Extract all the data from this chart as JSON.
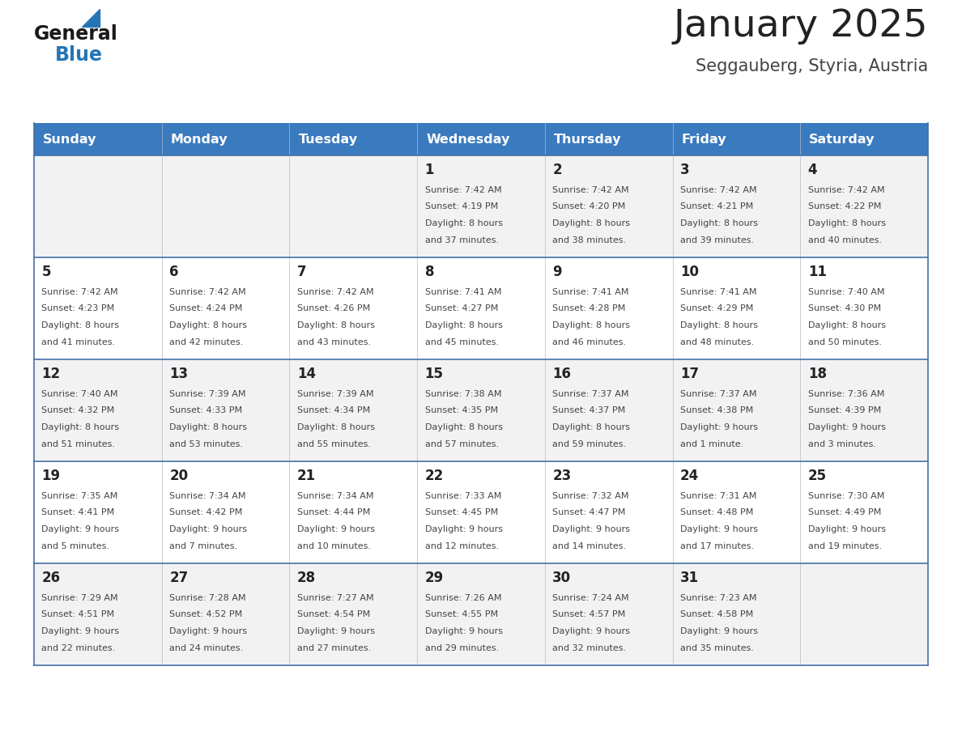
{
  "title": "January 2025",
  "subtitle": "Seggauberg, Styria, Austria",
  "days_of_week": [
    "Sunday",
    "Monday",
    "Tuesday",
    "Wednesday",
    "Thursday",
    "Friday",
    "Saturday"
  ],
  "header_bg": "#3a7abf",
  "header_text": "#ffffff",
  "row_bg_even": "#f2f2f2",
  "row_bg_odd": "#ffffff",
  "cell_border_color": "#4472a8",
  "title_color": "#222222",
  "subtitle_color": "#444444",
  "day_number_color": "#222222",
  "cell_text_color": "#444444",
  "logo_general_color": "#1a1a1a",
  "logo_blue_color": "#2575b5",
  "weeks": [
    {
      "days": [
        {
          "day": null,
          "info": null
        },
        {
          "day": null,
          "info": null
        },
        {
          "day": null,
          "info": null
        },
        {
          "day": 1,
          "info": {
            "sunrise": "7:42 AM",
            "sunset": "4:19 PM",
            "daylight": "8 hours and 37 minutes"
          }
        },
        {
          "day": 2,
          "info": {
            "sunrise": "7:42 AM",
            "sunset": "4:20 PM",
            "daylight": "8 hours and 38 minutes"
          }
        },
        {
          "day": 3,
          "info": {
            "sunrise": "7:42 AM",
            "sunset": "4:21 PM",
            "daylight": "8 hours and 39 minutes"
          }
        },
        {
          "day": 4,
          "info": {
            "sunrise": "7:42 AM",
            "sunset": "4:22 PM",
            "daylight": "8 hours and 40 minutes"
          }
        }
      ]
    },
    {
      "days": [
        {
          "day": 5,
          "info": {
            "sunrise": "7:42 AM",
            "sunset": "4:23 PM",
            "daylight": "8 hours and 41 minutes"
          }
        },
        {
          "day": 6,
          "info": {
            "sunrise": "7:42 AM",
            "sunset": "4:24 PM",
            "daylight": "8 hours and 42 minutes"
          }
        },
        {
          "day": 7,
          "info": {
            "sunrise": "7:42 AM",
            "sunset": "4:26 PM",
            "daylight": "8 hours and 43 minutes"
          }
        },
        {
          "day": 8,
          "info": {
            "sunrise": "7:41 AM",
            "sunset": "4:27 PM",
            "daylight": "8 hours and 45 minutes"
          }
        },
        {
          "day": 9,
          "info": {
            "sunrise": "7:41 AM",
            "sunset": "4:28 PM",
            "daylight": "8 hours and 46 minutes"
          }
        },
        {
          "day": 10,
          "info": {
            "sunrise": "7:41 AM",
            "sunset": "4:29 PM",
            "daylight": "8 hours and 48 minutes"
          }
        },
        {
          "day": 11,
          "info": {
            "sunrise": "7:40 AM",
            "sunset": "4:30 PM",
            "daylight": "8 hours and 50 minutes"
          }
        }
      ]
    },
    {
      "days": [
        {
          "day": 12,
          "info": {
            "sunrise": "7:40 AM",
            "sunset": "4:32 PM",
            "daylight": "8 hours and 51 minutes"
          }
        },
        {
          "day": 13,
          "info": {
            "sunrise": "7:39 AM",
            "sunset": "4:33 PM",
            "daylight": "8 hours and 53 minutes"
          }
        },
        {
          "day": 14,
          "info": {
            "sunrise": "7:39 AM",
            "sunset": "4:34 PM",
            "daylight": "8 hours and 55 minutes"
          }
        },
        {
          "day": 15,
          "info": {
            "sunrise": "7:38 AM",
            "sunset": "4:35 PM",
            "daylight": "8 hours and 57 minutes"
          }
        },
        {
          "day": 16,
          "info": {
            "sunrise": "7:37 AM",
            "sunset": "4:37 PM",
            "daylight": "8 hours and 59 minutes"
          }
        },
        {
          "day": 17,
          "info": {
            "sunrise": "7:37 AM",
            "sunset": "4:38 PM",
            "daylight": "9 hours and 1 minute"
          }
        },
        {
          "day": 18,
          "info": {
            "sunrise": "7:36 AM",
            "sunset": "4:39 PM",
            "daylight": "9 hours and 3 minutes"
          }
        }
      ]
    },
    {
      "days": [
        {
          "day": 19,
          "info": {
            "sunrise": "7:35 AM",
            "sunset": "4:41 PM",
            "daylight": "9 hours and 5 minutes"
          }
        },
        {
          "day": 20,
          "info": {
            "sunrise": "7:34 AM",
            "sunset": "4:42 PM",
            "daylight": "9 hours and 7 minutes"
          }
        },
        {
          "day": 21,
          "info": {
            "sunrise": "7:34 AM",
            "sunset": "4:44 PM",
            "daylight": "9 hours and 10 minutes"
          }
        },
        {
          "day": 22,
          "info": {
            "sunrise": "7:33 AM",
            "sunset": "4:45 PM",
            "daylight": "9 hours and 12 minutes"
          }
        },
        {
          "day": 23,
          "info": {
            "sunrise": "7:32 AM",
            "sunset": "4:47 PM",
            "daylight": "9 hours and 14 minutes"
          }
        },
        {
          "day": 24,
          "info": {
            "sunrise": "7:31 AM",
            "sunset": "4:48 PM",
            "daylight": "9 hours and 17 minutes"
          }
        },
        {
          "day": 25,
          "info": {
            "sunrise": "7:30 AM",
            "sunset": "4:49 PM",
            "daylight": "9 hours and 19 minutes"
          }
        }
      ]
    },
    {
      "days": [
        {
          "day": 26,
          "info": {
            "sunrise": "7:29 AM",
            "sunset": "4:51 PM",
            "daylight": "9 hours and 22 minutes"
          }
        },
        {
          "day": 27,
          "info": {
            "sunrise": "7:28 AM",
            "sunset": "4:52 PM",
            "daylight": "9 hours and 24 minutes"
          }
        },
        {
          "day": 28,
          "info": {
            "sunrise": "7:27 AM",
            "sunset": "4:54 PM",
            "daylight": "9 hours and 27 minutes"
          }
        },
        {
          "day": 29,
          "info": {
            "sunrise": "7:26 AM",
            "sunset": "4:55 PM",
            "daylight": "9 hours and 29 minutes"
          }
        },
        {
          "day": 30,
          "info": {
            "sunrise": "7:24 AM",
            "sunset": "4:57 PM",
            "daylight": "9 hours and 32 minutes"
          }
        },
        {
          "day": 31,
          "info": {
            "sunrise": "7:23 AM",
            "sunset": "4:58 PM",
            "daylight": "9 hours and 35 minutes"
          }
        },
        {
          "day": null,
          "info": null
        }
      ]
    }
  ]
}
